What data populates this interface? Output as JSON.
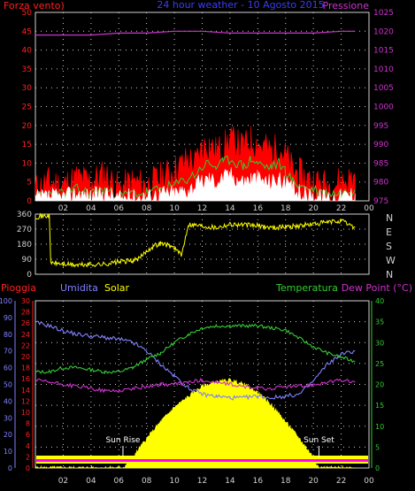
{
  "colors": {
    "background": "#000000",
    "axis": "#d0d0d0",
    "grid": "#ffffff",
    "wind_label": "#ff2020",
    "pressure": "#cc33cc",
    "title": "#3b3bff",
    "rain": "#ff2020",
    "humidity": "#8080ff",
    "solar": "#ffff00",
    "temperature": "#33cc33",
    "dewpoint": "#cc33cc",
    "gust": "#ff0000",
    "wind_avg": "#ffffff",
    "wind_mid": "#33cc33",
    "wind_dir": "#ffff00"
  },
  "chart_data": [
    {
      "type": "area",
      "title": "24 hour weather - 10 Agosto 2015",
      "y_left_label": "Forza vento)",
      "y_right_label": "Pressione",
      "y_left_ticks": [
        "0",
        "5",
        "10",
        "15",
        "20",
        "25",
        "30",
        "35",
        "40",
        "45",
        "50"
      ],
      "y_right_ticks": [
        "975",
        "980",
        "985",
        "990",
        "995",
        "1000",
        "1005",
        "1010",
        "1015",
        "1020",
        "1025"
      ],
      "ylim_left": [
        0,
        50
      ],
      "ylim_right": [
        975,
        1025
      ],
      "x_ticks": [
        "02",
        "04",
        "06",
        "08",
        "10",
        "12",
        "14",
        "16",
        "18",
        "20",
        "22",
        "00"
      ],
      "x_hours": [
        1,
        23
      ],
      "series": [
        {
          "x": [
            0,
            1,
            2,
            3,
            4,
            5,
            6,
            7,
            8,
            9,
            10,
            11,
            11.5,
            12,
            12.5,
            13,
            13.5,
            14,
            14.5,
            15,
            15.5,
            16,
            16.5,
            17,
            17.5,
            18,
            18.5,
            19,
            20,
            21,
            22,
            23
          ],
          "values": [
            3,
            5,
            4,
            6,
            5,
            7,
            3,
            5,
            4,
            6,
            8,
            11,
            10,
            14,
            15,
            13,
            14,
            16,
            15,
            14,
            16,
            15,
            14,
            13,
            14,
            12,
            8,
            7,
            5,
            4,
            5,
            6
          ]
        },
        {
          "x": [
            0,
            1,
            2,
            3,
            4,
            5,
            6,
            7,
            8,
            9,
            10,
            11,
            11.5,
            12,
            12.5,
            13,
            13.5,
            14,
            14.5,
            15,
            15.5,
            16,
            16.5,
            17,
            17.5,
            18,
            18.5,
            19,
            20,
            21,
            22,
            23
          ],
          "values": [
            1,
            2,
            2,
            3,
            2,
            3,
            1,
            2,
            2,
            3,
            4,
            6,
            7,
            9,
            10,
            9,
            10,
            11,
            10,
            9,
            11,
            10,
            9,
            9,
            10,
            8,
            5,
            4,
            3,
            2,
            2,
            3
          ]
        },
        {
          "x": [
            0,
            1,
            2,
            3,
            4,
            5,
            6,
            7,
            8,
            9,
            10,
            11,
            11.5,
            12,
            12.5,
            13,
            13.5,
            14,
            14.5,
            15,
            15.5,
            16,
            16.5,
            17,
            17.5,
            18,
            18.5,
            19,
            20,
            21,
            22,
            23
          ],
          "values": [
            0.5,
            1,
            1,
            2,
            1,
            2,
            0.5,
            1,
            1,
            2,
            2,
            3,
            4,
            5,
            6,
            5,
            6,
            7,
            6,
            5,
            6,
            6,
            5,
            5,
            6,
            4,
            3,
            2,
            1,
            1,
            1,
            2
          ]
        },
        {
          "x": [
            0,
            2,
            4,
            6,
            8,
            10,
            12,
            14,
            16,
            18,
            20,
            22,
            23
          ],
          "values": [
            1019,
            1019,
            1019,
            1019.5,
            1019.5,
            1020,
            1020,
            1019.5,
            1019.5,
            1019.5,
            1019.5,
            1020,
            1020
          ]
        }
      ]
    },
    {
      "type": "line",
      "y_left_ticks": [
        "0",
        "90",
        "180",
        "270",
        "360"
      ],
      "y_right_ticks": [
        "N",
        "W",
        "S",
        "E",
        "N"
      ],
      "ylim": [
        0,
        360
      ],
      "x_hours": [
        1,
        23
      ],
      "x": [
        0,
        1,
        1.1,
        2,
        3,
        4,
        5,
        6,
        7,
        7.5,
        8,
        8.5,
        9,
        9.5,
        10,
        10.5,
        11,
        12,
        13,
        14,
        15,
        16,
        17,
        18,
        19,
        20,
        21,
        22,
        23
      ],
      "values": [
        345,
        350,
        70,
        60,
        55,
        58,
        60,
        75,
        80,
        95,
        140,
        170,
        185,
        175,
        160,
        110,
        300,
        290,
        280,
        300,
        295,
        290,
        280,
        285,
        290,
        300,
        310,
        320,
        280
      ]
    },
    {
      "type": "area",
      "labels": [
        "Pioggia",
        "Umidita",
        "Solar",
        "Temperatura",
        "Dew Point (°C)"
      ],
      "rain_ticks": [
        "0",
        "2",
        "4",
        "6",
        "8",
        "10",
        "12",
        "14",
        "16",
        "18",
        "20",
        "22",
        "24",
        "26",
        "28",
        "30"
      ],
      "humidity_ticks": [
        "0",
        "10",
        "20",
        "30",
        "40",
        "50",
        "60",
        "70",
        "80",
        "90",
        "100"
      ],
      "temp_ticks": [
        "0",
        "5",
        "10",
        "15",
        "20",
        "25",
        "30",
        "35",
        "40"
      ],
      "ylim_temp": [
        0,
        40
      ],
      "ylim_humidity": [
        0,
        100
      ],
      "x_hours": [
        1,
        23
      ],
      "annotations": [
        {
          "text": "Sun Rise",
          "hour": 6.3
        },
        {
          "text": "Sun Set",
          "hour": 20.4
        }
      ],
      "series": [
        {
          "x": [
            0,
            1,
            2,
            3,
            4,
            5,
            6,
            7,
            8,
            9,
            10,
            11,
            12,
            13,
            14,
            15,
            16,
            17,
            18,
            19,
            20,
            21,
            22,
            23
          ],
          "values": [
            87,
            85,
            82,
            80,
            79,
            78,
            77,
            75,
            70,
            62,
            55,
            48,
            44,
            43,
            42,
            42,
            43,
            42,
            43,
            44,
            52,
            62,
            68,
            70
          ]
        },
        {
          "x": [
            0,
            1,
            2,
            3,
            4,
            5,
            6,
            7,
            8,
            9,
            10,
            11,
            12,
            13,
            14,
            15,
            16,
            17,
            18,
            19,
            20,
            21,
            22,
            23
          ],
          "values": [
            23,
            23,
            24,
            24,
            23.5,
            23,
            23,
            24,
            26,
            27.5,
            30,
            32,
            33.5,
            34,
            34,
            34,
            34,
            33.5,
            33,
            31,
            29,
            27.5,
            26.5,
            25.5
          ]
        },
        {
          "x": [
            0,
            1,
            2,
            3,
            4,
            5,
            6,
            7,
            8,
            9,
            10,
            11,
            12,
            13,
            14,
            15,
            16,
            17,
            18,
            19,
            20,
            21,
            22,
            23
          ],
          "values": [
            21,
            20.5,
            20,
            19.5,
            19,
            18.5,
            18.5,
            19,
            19.5,
            20,
            20,
            20.5,
            21,
            20.5,
            20,
            19.5,
            19,
            19,
            19.5,
            19.5,
            20,
            20.5,
            21,
            20.5
          ]
        },
        {
          "x": [
            0,
            6.3,
            7,
            8,
            9,
            10,
            11,
            12,
            13,
            14,
            15,
            16,
            17,
            18,
            19,
            20,
            20.4,
            23
          ],
          "values": [
            0,
            0,
            2.5,
            7,
            11,
            14.5,
            17,
            19.5,
            20.5,
            21,
            20,
            18,
            15,
            11,
            7,
            2.5,
            0,
            0
          ]
        }
      ]
    }
  ]
}
